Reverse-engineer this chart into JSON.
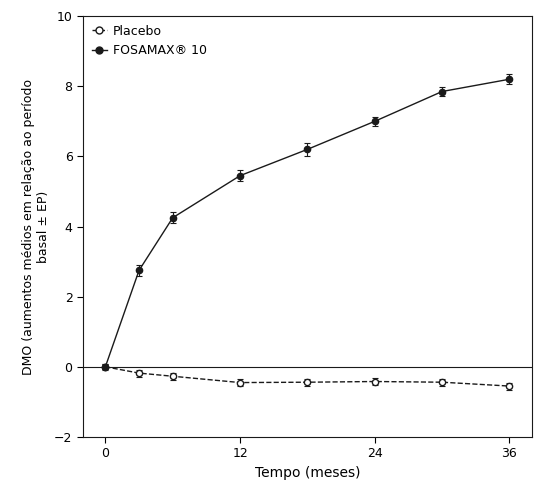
{
  "x": [
    0,
    3,
    6,
    12,
    18,
    24,
    30,
    36
  ],
  "fosamax_y": [
    0.0,
    2.75,
    4.25,
    5.45,
    6.2,
    7.0,
    7.85,
    8.2
  ],
  "fosamax_yerr": [
    0.08,
    0.15,
    0.15,
    0.15,
    0.18,
    0.12,
    0.12,
    0.15
  ],
  "placebo_y": [
    0.0,
    -0.18,
    -0.27,
    -0.45,
    -0.44,
    -0.42,
    -0.44,
    -0.55
  ],
  "placebo_yerr": [
    0.07,
    0.1,
    0.1,
    0.1,
    0.1,
    0.1,
    0.1,
    0.1
  ],
  "xlabel": "Tempo (meses)",
  "ylabel": "DMO (aumentos médios em relação ao período\nbasal ± EP)",
  "xlim": [
    -2,
    38
  ],
  "ylim": [
    -2,
    10
  ],
  "yticks": [
    -2,
    0,
    2,
    4,
    6,
    8,
    10
  ],
  "xticks": [
    0,
    12,
    24,
    36
  ],
  "legend_fosamax": "FOSAMAX® 10",
  "legend_placebo": "Placebo",
  "line_color": "#1a1a1a",
  "background_color": "#ffffff"
}
